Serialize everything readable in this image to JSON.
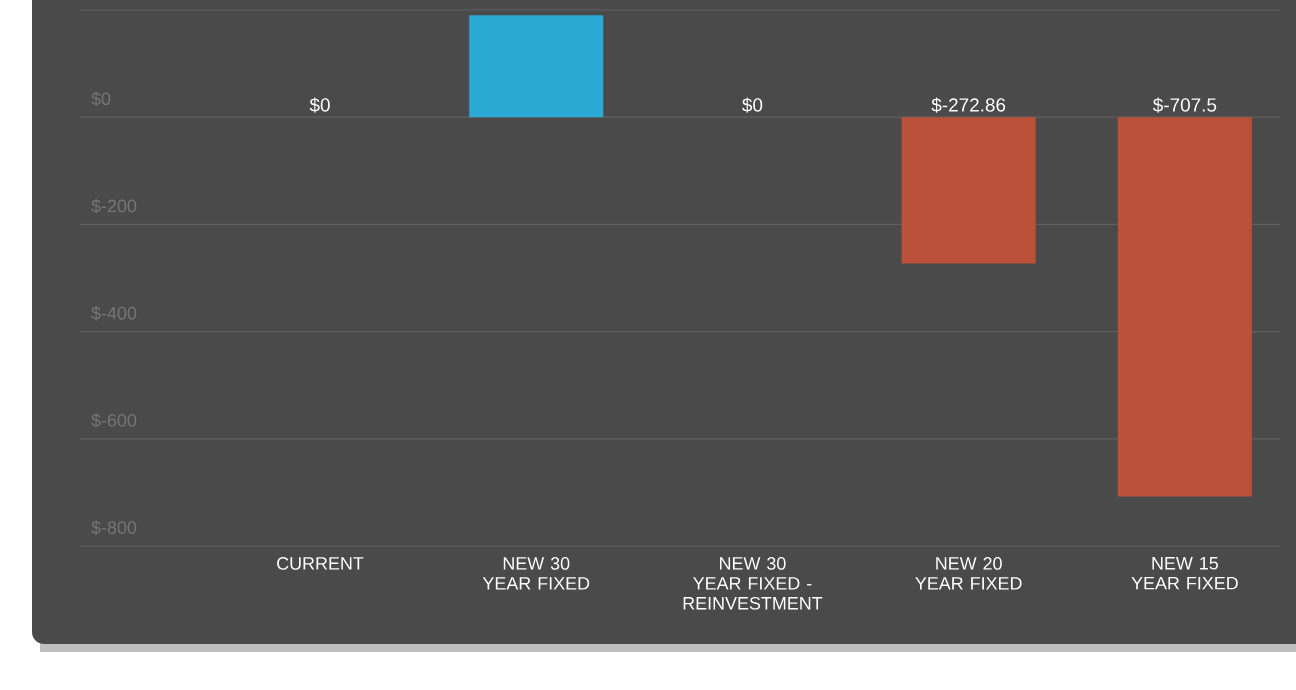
{
  "chart_data": {
    "type": "bar",
    "categories": [
      "CURRENT",
      "NEW 30 YEAR FIXED",
      "NEW 30 YEAR FIXED - REINVESTMENT",
      "NEW 20 YEAR FIXED",
      "NEW 15 YEAR FIXED"
    ],
    "values": [
      0,
      190,
      0,
      -272.86,
      -707.5
    ],
    "colors": [
      "#29a9d4",
      "#29a9d4",
      "#29a9d4",
      "#bb5138",
      "#bb5138"
    ],
    "value_labels": [
      "$0",
      null,
      "$0",
      "$-272.86",
      "$-707.5"
    ],
    "ylim": [
      -800,
      200
    ],
    "yticks": [
      {
        "value": -800,
        "label": "$-800"
      },
      {
        "value": -600,
        "label": "$-600"
      },
      {
        "value": -400,
        "label": "$-400"
      },
      {
        "value": -200,
        "label": "$-200"
      },
      {
        "value": 0,
        "label": "$0"
      },
      {
        "value": 200,
        "label": null
      }
    ],
    "grid": "y"
  }
}
